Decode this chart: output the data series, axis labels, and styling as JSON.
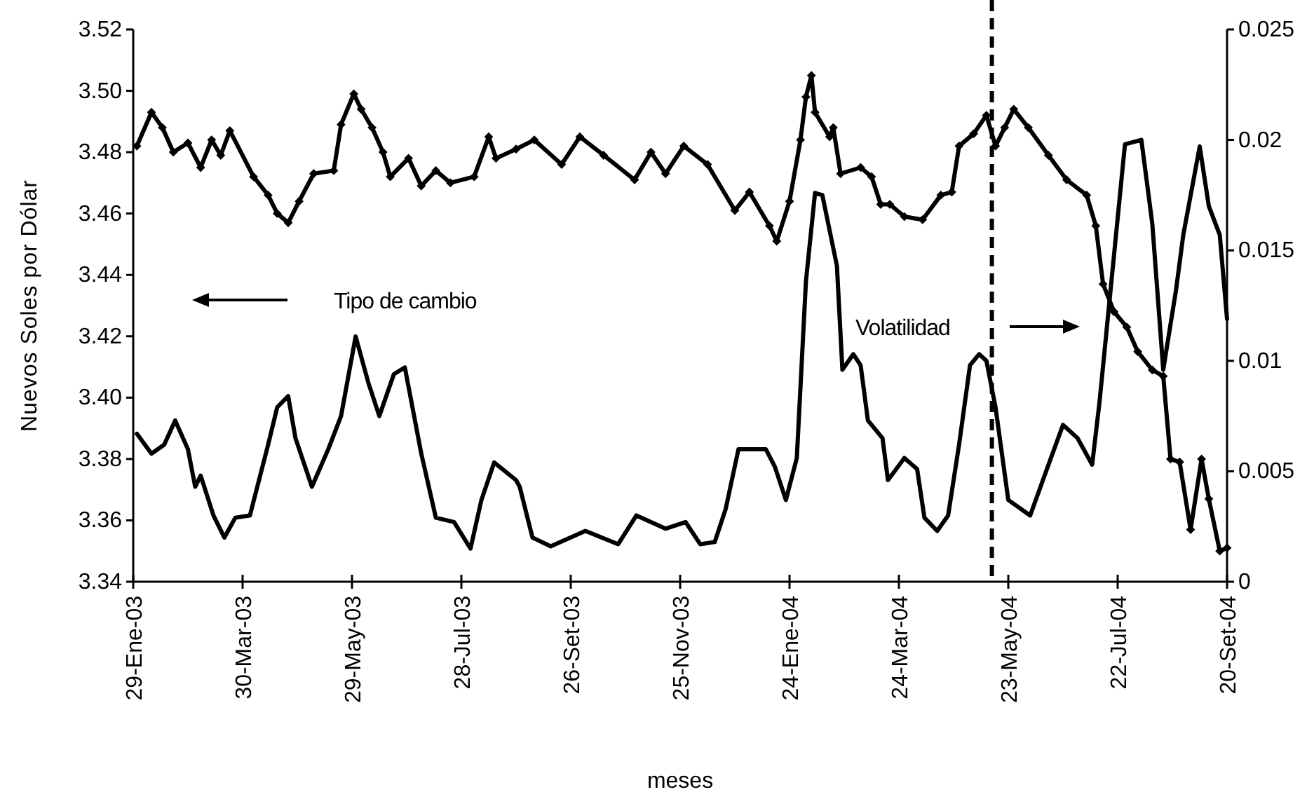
{
  "chart_data": {
    "type": "line",
    "xlabel": "meses",
    "ylabel": "Nuevos Soles por Dólar",
    "xlim": [
      "2003-01-29",
      "2004-09-20"
    ],
    "xticks": [
      {
        "value": "2003-01-29",
        "label": "29-Ene-03"
      },
      {
        "value": "2003-03-30",
        "label": "30-Mar-03"
      },
      {
        "value": "2003-05-29",
        "label": "29-May-03"
      },
      {
        "value": "2003-07-28",
        "label": "28-Jul-03"
      },
      {
        "value": "2003-09-26",
        "label": "26-Set-03"
      },
      {
        "value": "2003-11-25",
        "label": "25-Nov-03"
      },
      {
        "value": "2004-01-24",
        "label": "24-Ene-04"
      },
      {
        "value": "2004-03-24",
        "label": "24-Mar-04"
      },
      {
        "value": "2004-05-23",
        "label": "23-May-04"
      },
      {
        "value": "2004-07-22",
        "label": "22-Jul-04"
      },
      {
        "value": "2004-09-20",
        "label": "20-Set-04"
      }
    ],
    "ylim": [
      3.34,
      3.52
    ],
    "yticks": [
      3.34,
      3.36,
      3.38,
      {
        "value": 3.4,
        "label": "3.40"
      },
      3.42,
      3.44,
      3.46,
      3.48,
      {
        "value": 3.5,
        "label": "3.50"
      },
      3.52
    ],
    "y2lim": [
      0,
      0.025
    ],
    "y2ticks": [
      0,
      0.005,
      0.01,
      0.015,
      0.02,
      0.025
    ],
    "grid": false,
    "legend": "left",
    "ref_lines": [
      {
        "axis": "x",
        "value": "2004-05-14",
        "line_style": "dashed",
        "color": "#000000"
      }
    ],
    "series": [
      {
        "name": "Tipo de cambio",
        "color": "#000000",
        "marker": "diamond",
        "line_style": "solid",
        "x": [
          "2003-01-31",
          "2003-02-08",
          "2003-02-14",
          "2003-02-20",
          "2003-02-28",
          "2003-03-07",
          "2003-03-13",
          "2003-03-18",
          "2003-03-23",
          "2003-04-05",
          "2003-04-13",
          "2003-04-18",
          "2003-04-24",
          "2003-04-30",
          "2003-05-08",
          "2003-05-19",
          "2003-05-23",
          "2003-05-30",
          "2003-06-03",
          "2003-06-09",
          "2003-06-15",
          "2003-06-19",
          "2003-06-29",
          "2003-07-06",
          "2003-07-14",
          "2003-07-22",
          "2003-08-04",
          "2003-08-12",
          "2003-08-16",
          "2003-08-27",
          "2003-09-06",
          "2003-09-21",
          "2003-10-01",
          "2003-10-14",
          "2003-10-31",
          "2003-11-09",
          "2003-11-17",
          "2003-11-27",
          "2003-12-10",
          "2003-12-25",
          "2004-01-02",
          "2004-01-13",
          "2004-01-17",
          "2004-01-24",
          "2004-01-30",
          "2004-02-02",
          "2004-02-05",
          "2004-02-07",
          "2004-02-15",
          "2004-02-17",
          "2004-02-21",
          "2004-03-03",
          "2004-03-09",
          "2004-03-14",
          "2004-03-19",
          "2004-03-27",
          "2004-04-06",
          "2004-04-16",
          "2004-04-22",
          "2004-04-26",
          "2004-05-04",
          "2004-05-11",
          "2004-05-16",
          "2004-05-21",
          "2004-05-26",
          "2004-06-03",
          "2004-06-14",
          "2004-06-24",
          "2004-07-05",
          "2004-07-10",
          "2004-07-14",
          "2004-07-20",
          "2004-07-27",
          "2004-08-02",
          "2004-08-10",
          "2004-08-16",
          "2004-08-20",
          "2004-08-25",
          "2004-08-31",
          "2004-09-06",
          "2004-09-10",
          "2004-09-16",
          "2004-09-20"
        ],
        "values": [
          3.482,
          3.493,
          3.488,
          3.48,
          3.483,
          3.475,
          3.484,
          3.479,
          3.487,
          3.472,
          3.466,
          3.46,
          3.457,
          3.464,
          3.473,
          3.474,
          3.489,
          3.499,
          3.494,
          3.488,
          3.48,
          3.472,
          3.478,
          3.469,
          3.474,
          3.47,
          3.472,
          3.485,
          3.478,
          3.481,
          3.484,
          3.476,
          3.485,
          3.479,
          3.471,
          3.48,
          3.473,
          3.482,
          3.476,
          3.461,
          3.467,
          3.456,
          3.451,
          3.464,
          3.484,
          3.498,
          3.505,
          3.493,
          3.485,
          3.488,
          3.473,
          3.475,
          3.472,
          3.463,
          3.463,
          3.459,
          3.458,
          3.466,
          3.467,
          3.482,
          3.486,
          3.492,
          3.482,
          3.488,
          3.494,
          3.488,
          3.479,
          3.471,
          3.466,
          3.456,
          3.437,
          3.428,
          3.423,
          3.415,
          3.409,
          3.407,
          3.38,
          3.379,
          3.357,
          3.38,
          3.367,
          3.35,
          3.351
        ]
      },
      {
        "name": "Volatilidad",
        "color": "#000000",
        "marker": "none",
        "line_style": "solid",
        "axis": "y2",
        "x": [
          "2003-01-31",
          "2003-02-08",
          "2003-02-15",
          "2003-02-21",
          "2003-02-28",
          "2003-03-04",
          "2003-03-07",
          "2003-03-14",
          "2003-03-20",
          "2003-03-26",
          "2003-04-03",
          "2003-04-13",
          "2003-04-18",
          "2003-04-24",
          "2003-04-28",
          "2003-05-07",
          "2003-05-16",
          "2003-05-23",
          "2003-05-31",
          "2003-06-07",
          "2003-06-13",
          "2003-06-21",
          "2003-06-27",
          "2003-07-06",
          "2003-07-14",
          "2003-07-24",
          "2003-08-02",
          "2003-08-08",
          "2003-08-15",
          "2003-08-27",
          "2003-08-29",
          "2003-09-05",
          "2003-09-15",
          "2003-10-04",
          "2003-10-22",
          "2003-11-01",
          "2003-11-17",
          "2003-11-28",
          "2003-12-06",
          "2003-12-14",
          "2003-12-20",
          "2003-12-27",
          "2004-01-11",
          "2004-01-16",
          "2004-01-22",
          "2004-01-28",
          "2004-02-02",
          "2004-02-07",
          "2004-02-11",
          "2004-02-19",
          "2004-02-22",
          "2004-02-28",
          "2004-03-03",
          "2004-03-07",
          "2004-03-15",
          "2004-03-18",
          "2004-03-27",
          "2004-04-03",
          "2004-04-07",
          "2004-04-14",
          "2004-04-20",
          "2004-04-26",
          "2004-05-02",
          "2004-05-07",
          "2004-05-11",
          "2004-05-16",
          "2004-05-23",
          "2004-06-04",
          "2004-06-11",
          "2004-06-22",
          "2004-06-30",
          "2004-07-08",
          "2004-07-12",
          "2004-07-26",
          "2004-08-04",
          "2004-08-10",
          "2004-08-16",
          "2004-08-23",
          "2004-08-27",
          "2004-09-05",
          "2004-09-10",
          "2004-09-16",
          "2004-09-20"
        ],
        "values": [
          0.0067,
          0.0058,
          0.0062,
          0.0073,
          0.006,
          0.0043,
          0.0048,
          0.003,
          0.002,
          0.0029,
          0.003,
          0.0062,
          0.0079,
          0.0084,
          0.0065,
          0.0043,
          0.006,
          0.0075,
          0.0111,
          0.009,
          0.0075,
          0.0094,
          0.0097,
          0.0058,
          0.0029,
          0.0027,
          0.0015,
          0.0037,
          0.0054,
          0.0046,
          0.0043,
          0.002,
          0.0016,
          0.0023,
          0.0017,
          0.003,
          0.0024,
          0.0027,
          0.0017,
          0.0018,
          0.0033,
          0.006,
          0.006,
          0.0052,
          0.0037,
          0.0056,
          0.0136,
          0.0176,
          0.0175,
          0.0143,
          0.0096,
          0.0103,
          0.0098,
          0.0073,
          0.0065,
          0.0046,
          0.0056,
          0.0051,
          0.0029,
          0.0023,
          0.003,
          0.0062,
          0.0098,
          0.0103,
          0.01,
          0.0079,
          0.0037,
          0.003,
          0.0046,
          0.0071,
          0.0065,
          0.0053,
          0.0081,
          0.0198,
          0.02,
          0.0162,
          0.0096,
          0.0132,
          0.0157,
          0.0197,
          0.017,
          0.0157,
          0.0119
        ]
      }
    ]
  }
}
